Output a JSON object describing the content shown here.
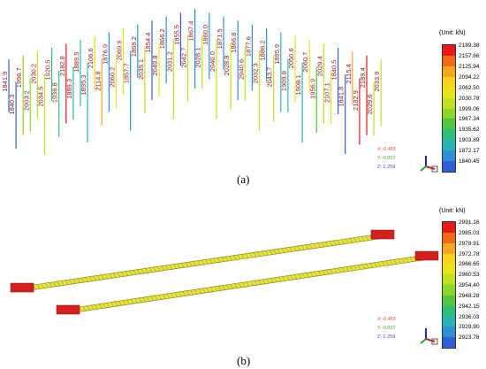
{
  "panel_a": {
    "caption": "(a)",
    "unit": "(Unit: kN)",
    "legend": {
      "values": [
        "2189.38",
        "2157.66",
        "2125.94",
        "2094.22",
        "2062.50",
        "2030.78",
        "1999.06",
        "1967.34",
        "1935.62",
        "1903.89",
        "1872.17",
        "1840.45"
      ],
      "colors": [
        "#e51919",
        "#f06a1a",
        "#f5a623",
        "#f7d21e",
        "#e9e31c",
        "#bfe01e",
        "#8fd62a",
        "#55c53f",
        "#2fbf7b",
        "#2ab3b5",
        "#2f8fd6",
        "#2f5fd8"
      ]
    },
    "coords": {
      "x": "X:-0.483",
      "y": "Y:-0.837",
      "z": "Z: 0.259"
    },
    "upper_labels": [
      "1841.9",
      "1840.3",
      "1996.7",
      "2003.2",
      "2030.2",
      "2034.5",
      "1920.5",
      "1936.8",
      "2182.8",
      "1889.3",
      "1889.5",
      "1895.3",
      "2106.6",
      "2114.8",
      "1876.9",
      "2060.2",
      "2069.9",
      "1857.7",
      "1869.2",
      "2039.1",
      "1854.4",
      "2049.8",
      "1866.2",
      "2031.2",
      "1855.5",
      "2042.7",
      "1867.4",
      "2028.1",
      "1860.0",
      "2040.0",
      "1871.5",
      "2028.8",
      "1866.8",
      "2040.6",
      "1877.6",
      "2032.3",
      "1886.2",
      "2043.7",
      "1895.9",
      "1909.8",
      "2050.6",
      "1908.1",
      "2060.7",
      "1956.9",
      "2029.4",
      "2107.1",
      "1840.5",
      "1841.8",
      "2115.4",
      "2182.9",
      "2189.4",
      "2029.6",
      "2033.9"
    ]
  },
  "panel_b": {
    "caption": "(b)",
    "unit": "(Unit: kN)",
    "legend": {
      "values": [
        "2991.16",
        "2985.03",
        "2978.91",
        "2972.78",
        "2966.65",
        "2960.53",
        "2954.40",
        "2948.28",
        "2942.15",
        "2936.03",
        "2929.90",
        "2923.78"
      ],
      "colors": [
        "#e51919",
        "#f06a1a",
        "#f5a623",
        "#f7d21e",
        "#e9e31c",
        "#bfe01e",
        "#8fd62a",
        "#55c53f",
        "#2fbf7b",
        "#2ab3b5",
        "#2f8fd6",
        "#2f5fd8"
      ]
    },
    "coords": {
      "x": "X:-0.483",
      "y": "Y:-0.837",
      "z": "Z: 0.259"
    }
  }
}
